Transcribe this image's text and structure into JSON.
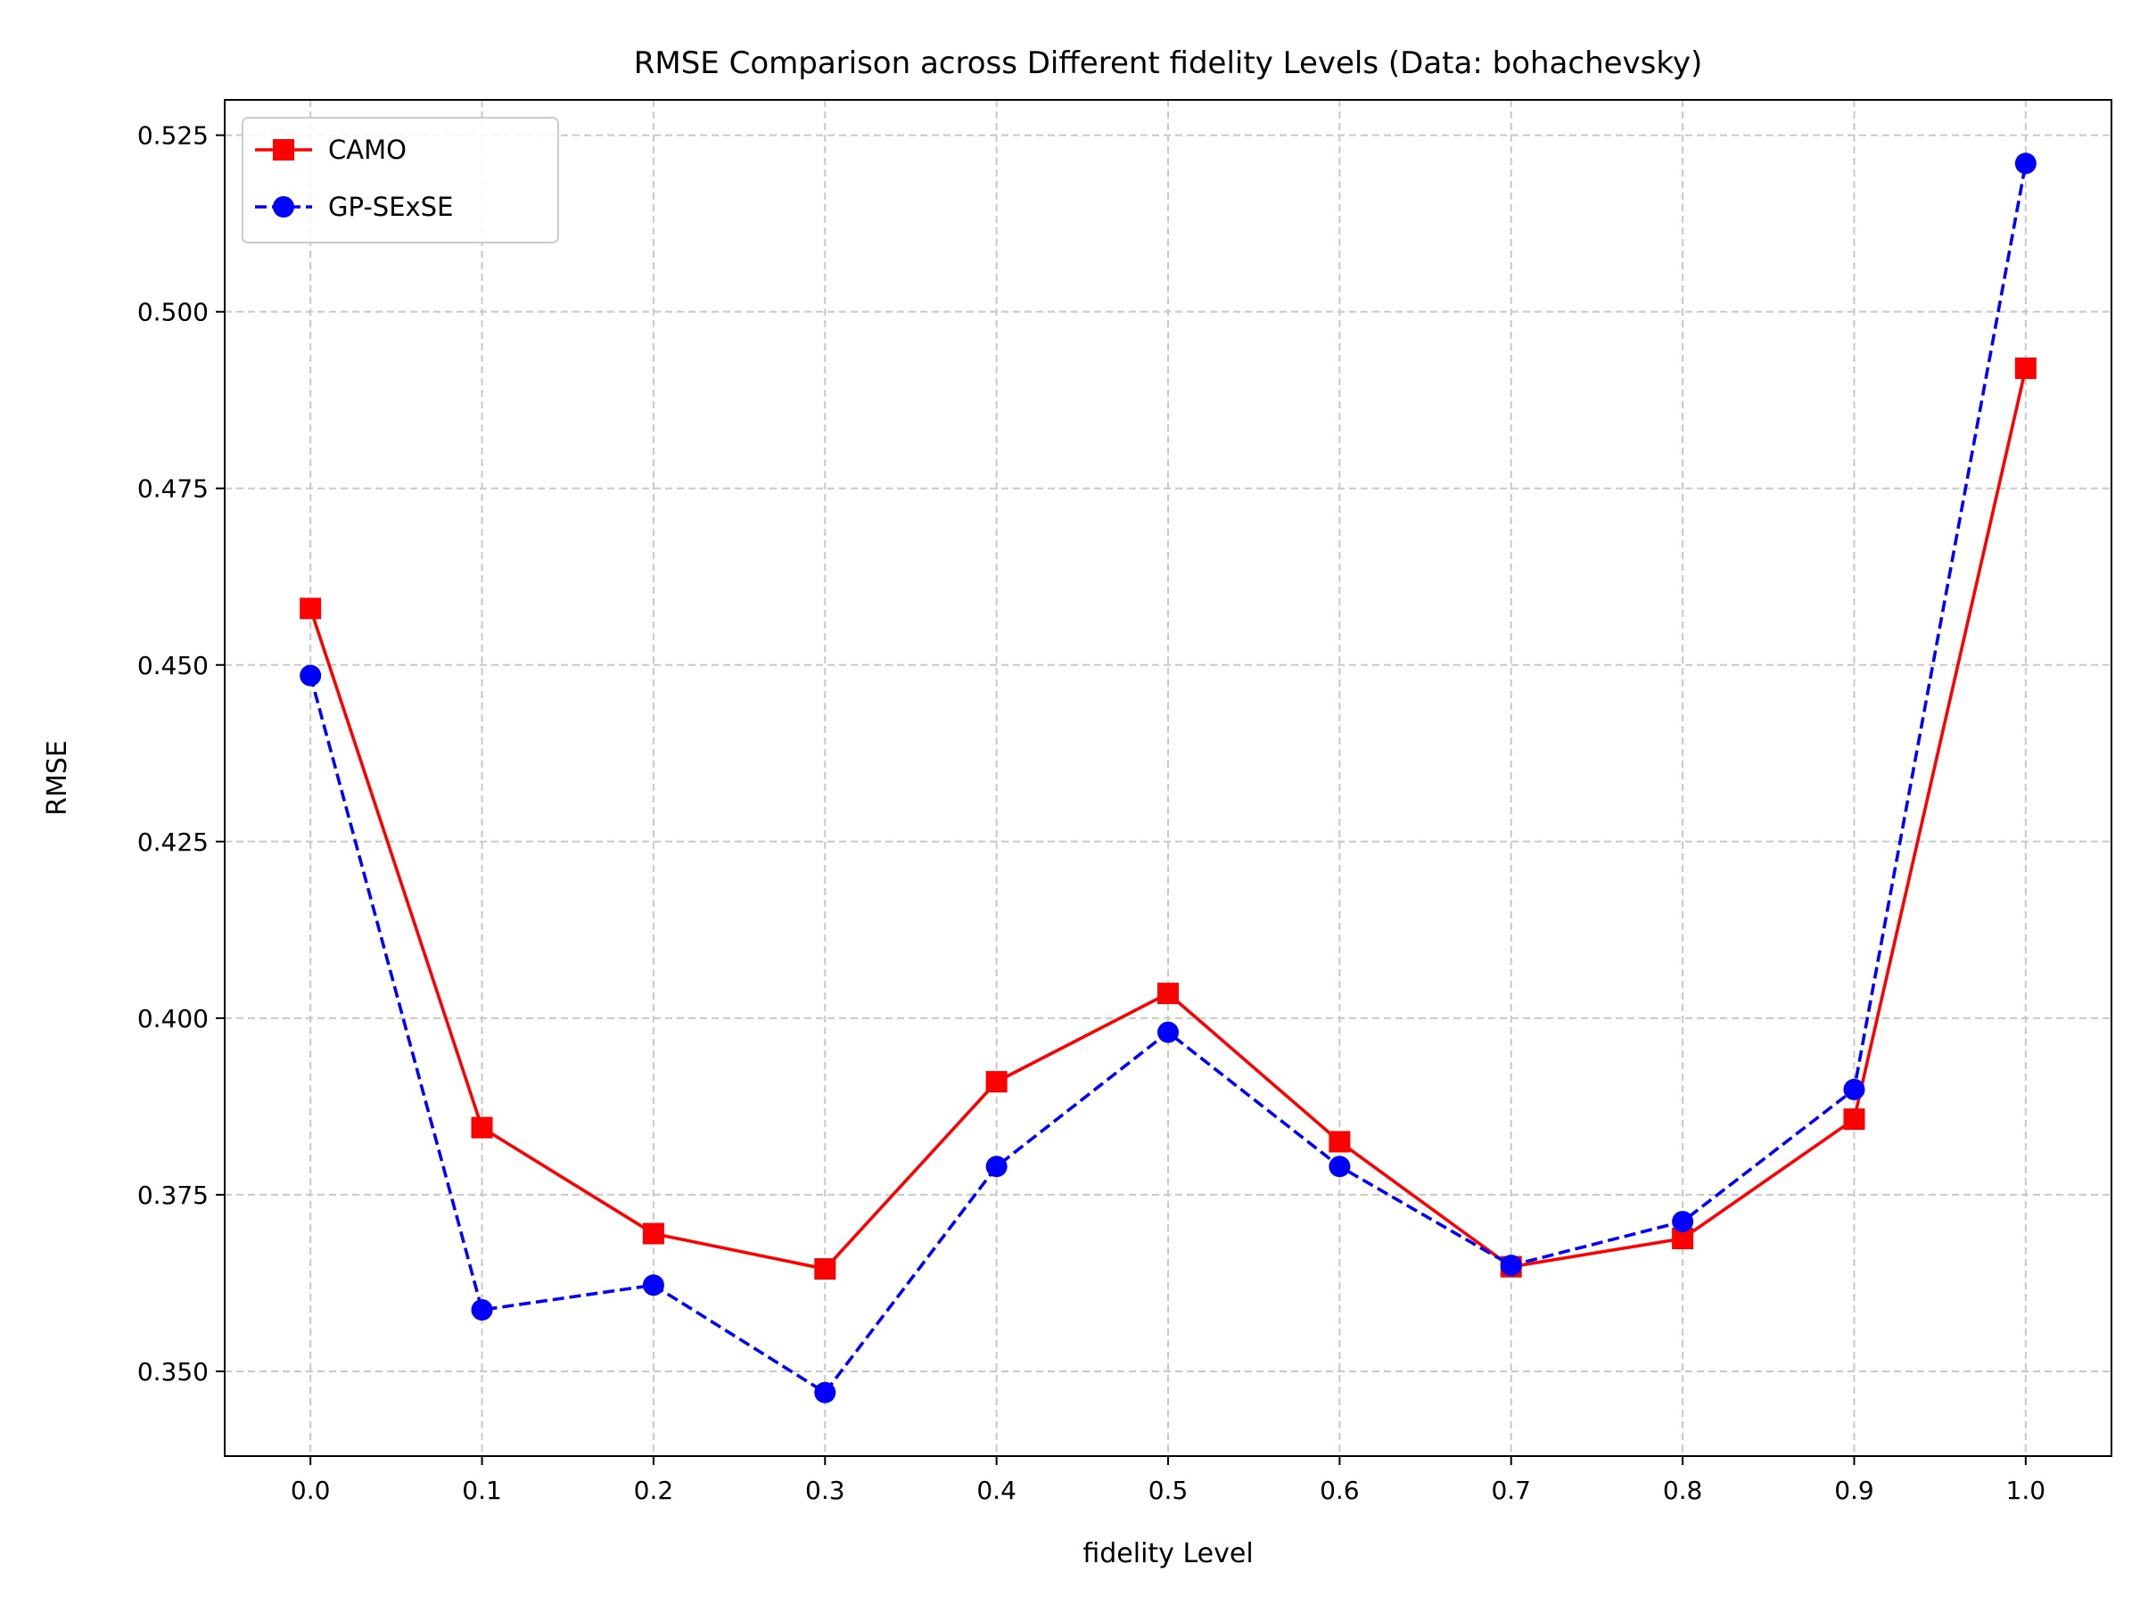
{
  "chart_data": {
    "type": "line",
    "title": "RMSE Comparison across Different fidelity Levels (Data: bohachevsky)",
    "xlabel": "fidelity Level",
    "ylabel": "RMSE",
    "x": [
      0.0,
      0.1,
      0.2,
      0.3,
      0.4,
      0.5,
      0.6,
      0.7,
      0.8,
      0.9,
      1.0
    ],
    "xticks": [
      "0.0",
      "0.1",
      "0.2",
      "0.3",
      "0.4",
      "0.5",
      "0.6",
      "0.7",
      "0.8",
      "0.9",
      "1.0"
    ],
    "yticks": [
      "0.350",
      "0.375",
      "0.400",
      "0.425",
      "0.450",
      "0.475",
      "0.500",
      "0.525"
    ],
    "xlim": [
      -0.05,
      1.05
    ],
    "ylim": [
      0.338,
      0.53
    ],
    "grid": true,
    "legend_position": "top-left",
    "series": [
      {
        "name": "CAMO",
        "color": "#ff0000",
        "line_style": "solid",
        "marker": "square",
        "values": [
          0.458,
          0.3845,
          0.3695,
          0.3645,
          0.391,
          0.4035,
          0.3825,
          0.3648,
          0.3688,
          0.3857,
          0.492
        ]
      },
      {
        "name": "GP-SExSE",
        "color": "#0000ff",
        "line_style": "dashed",
        "marker": "circle",
        "values": [
          0.4485,
          0.3587,
          0.3622,
          0.347,
          0.379,
          0.398,
          0.379,
          0.365,
          0.3712,
          0.3899,
          0.521
        ]
      }
    ]
  }
}
